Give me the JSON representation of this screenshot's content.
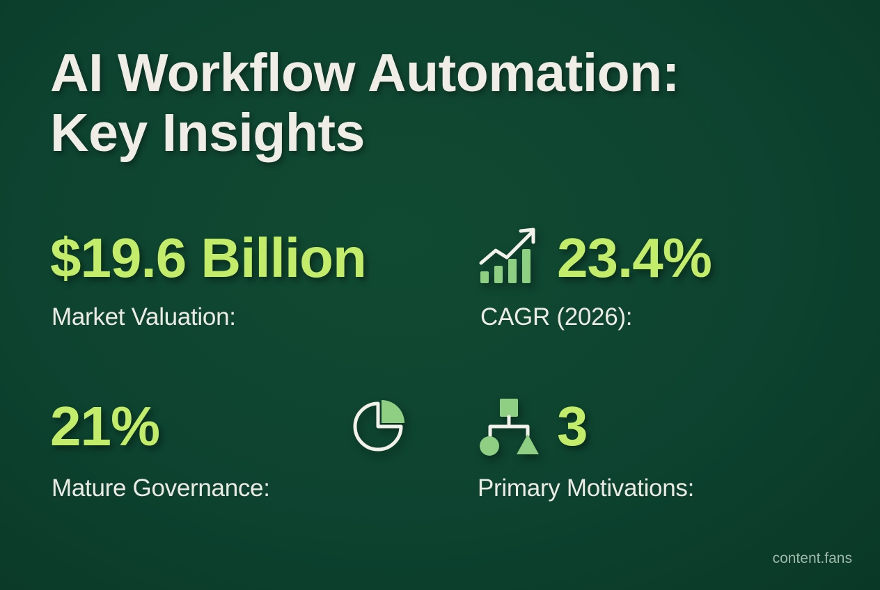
{
  "title": {
    "line1": "AI Workflow Automation:",
    "line2": "Key Insights"
  },
  "stats": {
    "market": {
      "value": "$19.6 Billion",
      "label": "Market Valuation:"
    },
    "cagr": {
      "value": "23.4%",
      "label": "CAGR (2026):",
      "icon": "growth-bar-chart-icon"
    },
    "governance": {
      "value": "21%",
      "label": "Mature Governance:",
      "icon": "pie-chart-icon"
    },
    "motivations": {
      "value": "3",
      "label": "Primary Motivations:",
      "icon": "hierarchy-shapes-icon"
    }
  },
  "watermark": "content.fans",
  "colors": {
    "background": "#0d4330",
    "accent": "#c2ec6a",
    "text": "#efede6",
    "icon_fill": "#8fcf84"
  }
}
